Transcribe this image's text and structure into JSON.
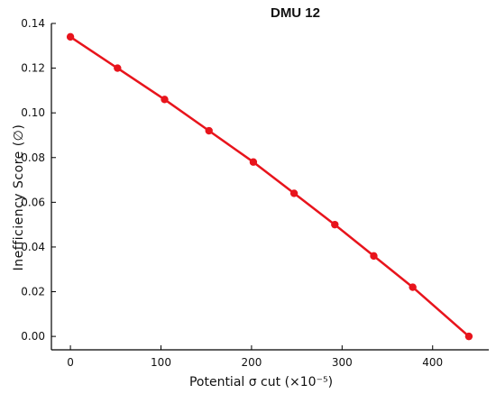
{
  "chart_data": {
    "type": "line",
    "title": "DMU 12",
    "xlabel": "Potential σ cut (×10⁻⁵)",
    "ylabel": "Inefficiency Score (∅)",
    "x": [
      0,
      52,
      104,
      153,
      202,
      247,
      292,
      335,
      378,
      440
    ],
    "series": [
      {
        "values": [
          0.134,
          0.12,
          0.106,
          0.092,
          0.078,
          0.064,
          0.05,
          0.036,
          0.022,
          0.0
        ]
      }
    ],
    "xlim": [
      -21,
      462
    ],
    "ylim": [
      -0.006,
      0.14
    ],
    "xticks": [
      0,
      100,
      200,
      300,
      400
    ],
    "xtick_labels": [
      "0",
      "100",
      "200",
      "300",
      "400"
    ],
    "yticks": [
      0.0,
      0.02,
      0.04,
      0.06,
      0.08,
      0.1,
      0.12,
      0.14
    ],
    "ytick_labels": [
      "0.00",
      "0.02",
      "0.04",
      "0.06",
      "0.08",
      "0.10",
      "0.12",
      "0.14"
    ],
    "grid": false,
    "line_color": "#e8141c"
  }
}
